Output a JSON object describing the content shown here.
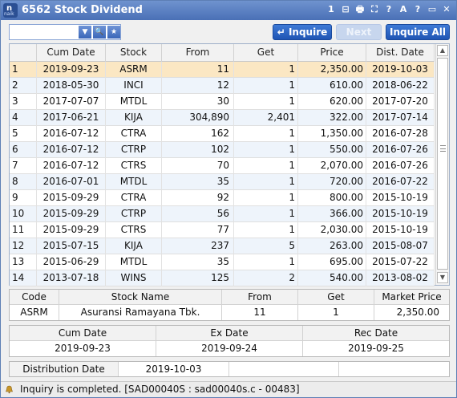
{
  "window": {
    "title": "6562 Stock Dividend",
    "logo_text": "naik"
  },
  "title_tools": [
    "1",
    "⊟",
    "🖶",
    "⛶",
    "?",
    "A",
    "?",
    "▭",
    "✕"
  ],
  "toolbar": {
    "search_value": "",
    "search_placeholder": "",
    "inquire_label": "↵ Inquire",
    "next_label": "Next",
    "inquire_all_label": "Inquire All"
  },
  "table": {
    "headers": [
      "",
      "Cum Date",
      "Stock",
      "From",
      "Get",
      "Price",
      "Dist. Date"
    ],
    "selected_row": 1,
    "rows": [
      {
        "idx": "1",
        "cum": "2019-09-23",
        "stock": "ASRM",
        "from": "11",
        "get": "1",
        "price": "2,350.00",
        "dist": "2019-10-03"
      },
      {
        "idx": "2",
        "cum": "2018-05-30",
        "stock": "INCI",
        "from": "12",
        "get": "1",
        "price": "610.00",
        "dist": "2018-06-22"
      },
      {
        "idx": "3",
        "cum": "2017-07-07",
        "stock": "MTDL",
        "from": "30",
        "get": "1",
        "price": "620.00",
        "dist": "2017-07-20"
      },
      {
        "idx": "4",
        "cum": "2017-06-21",
        "stock": "KIJA",
        "from": "304,890",
        "get": "2,401",
        "price": "322.00",
        "dist": "2017-07-14"
      },
      {
        "idx": "5",
        "cum": "2016-07-12",
        "stock": "CTRA",
        "from": "162",
        "get": "1",
        "price": "1,350.00",
        "dist": "2016-07-28"
      },
      {
        "idx": "6",
        "cum": "2016-07-12",
        "stock": "CTRP",
        "from": "102",
        "get": "1",
        "price": "550.00",
        "dist": "2016-07-26"
      },
      {
        "idx": "7",
        "cum": "2016-07-12",
        "stock": "CTRS",
        "from": "70",
        "get": "1",
        "price": "2,070.00",
        "dist": "2016-07-26"
      },
      {
        "idx": "8",
        "cum": "2016-07-01",
        "stock": "MTDL",
        "from": "35",
        "get": "1",
        "price": "720.00",
        "dist": "2016-07-22"
      },
      {
        "idx": "9",
        "cum": "2015-09-29",
        "stock": "CTRA",
        "from": "92",
        "get": "1",
        "price": "800.00",
        "dist": "2015-10-19"
      },
      {
        "idx": "10",
        "cum": "2015-09-29",
        "stock": "CTRP",
        "from": "56",
        "get": "1",
        "price": "366.00",
        "dist": "2015-10-19"
      },
      {
        "idx": "11",
        "cum": "2015-09-29",
        "stock": "CTRS",
        "from": "77",
        "get": "1",
        "price": "2,030.00",
        "dist": "2015-10-19"
      },
      {
        "idx": "12",
        "cum": "2015-07-15",
        "stock": "KIJA",
        "from": "237",
        "get": "5",
        "price": "263.00",
        "dist": "2015-08-07"
      },
      {
        "idx": "13",
        "cum": "2015-06-29",
        "stock": "MTDL",
        "from": "35",
        "get": "1",
        "price": "695.00",
        "dist": "2015-07-22"
      },
      {
        "idx": "14",
        "cum": "2013-07-18",
        "stock": "WINS",
        "from": "125",
        "get": "2",
        "price": "540.00",
        "dist": "2013-08-02"
      }
    ]
  },
  "detail": {
    "headers": [
      "Code",
      "Stock Name",
      "From",
      "Get",
      "Market Price"
    ],
    "values": [
      "ASRM",
      "Asuransi Ramayana Tbk.",
      "11",
      "1",
      "2,350.00"
    ]
  },
  "dates": {
    "headers": [
      "Cum Date",
      "Ex Date",
      "Rec Date"
    ],
    "values": [
      "2019-09-23",
      "2019-09-24",
      "2019-09-25"
    ]
  },
  "distribution": {
    "label": "Distribution Date",
    "value": "2019-10-03"
  },
  "status": {
    "text": "Inquiry is completed. [SAD00040S : sad00040s.c - 00483]"
  },
  "colors": {
    "title_bar": "#4a70b6",
    "selected_row": "#fbe7c3",
    "zebra_row": "#eef4fb",
    "primary_button": "#1f55b4",
    "status_icon": "#c8962a"
  }
}
